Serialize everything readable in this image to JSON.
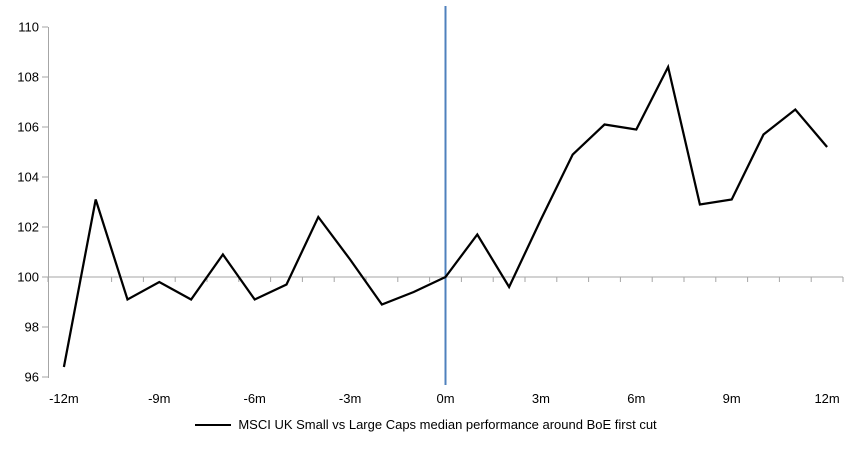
{
  "chart_data": {
    "type": "line",
    "title": "",
    "xlabel": "",
    "ylabel": "",
    "x": [
      -12,
      -11,
      -10,
      -9,
      -8,
      -7,
      -6,
      -5,
      -4,
      -3,
      -2,
      -1,
      0,
      1,
      2,
      3,
      4,
      5,
      6,
      7,
      8,
      9,
      10,
      11,
      12
    ],
    "series": [
      {
        "name": "MSCI UK Small vs Large Caps median performance around BoE first cut",
        "color": "#000000",
        "values": [
          96.4,
          103.1,
          99.1,
          99.8,
          99.1,
          100.9,
          99.1,
          99.7,
          102.4,
          100.7,
          98.9,
          99.4,
          100.0,
          101.7,
          99.6,
          102.3,
          104.9,
          106.1,
          105.9,
          108.4,
          102.9,
          103.1,
          105.7,
          106.7,
          105.2
        ]
      }
    ],
    "ylim": [
      96,
      110
    ],
    "y_ticks": [
      96,
      98,
      100,
      102,
      104,
      106,
      108,
      110
    ],
    "x_tick_values": [
      -12,
      -9,
      -6,
      -3,
      0,
      3,
      6,
      9,
      12
    ],
    "x_tick_labels": [
      "-12m",
      "-9m",
      "-6m",
      "-3m",
      "0m",
      "3m",
      "6m",
      "9m",
      "12m"
    ],
    "baseline": {
      "value": 100,
      "color": "#A6A6A6"
    },
    "event_line": {
      "x": 0,
      "color": "#4F81BD"
    },
    "axis_color": "#A6A6A6",
    "text_color": "#000000",
    "grid": false,
    "legend_position": "bottom"
  },
  "legend": {
    "label": "MSCI UK Small vs Large Caps median performance around BoE first cut"
  }
}
